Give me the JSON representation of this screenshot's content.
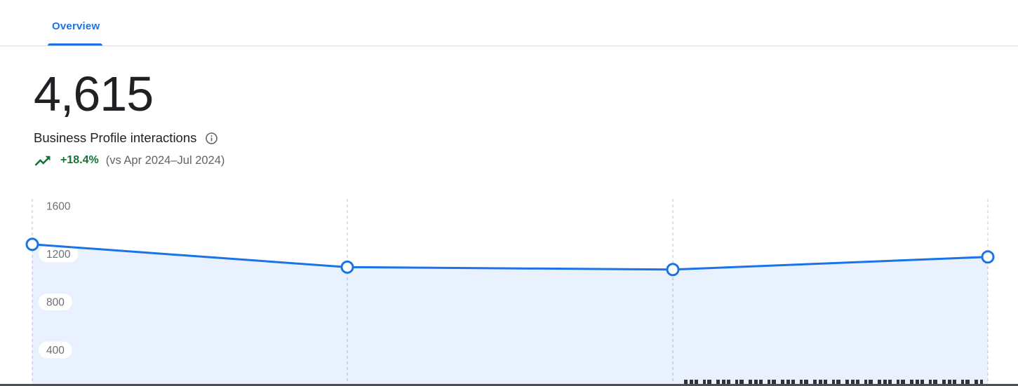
{
  "tabs": [
    {
      "label": "Overview",
      "active": true
    }
  ],
  "metric": {
    "value": "4,615",
    "label": "Business Profile interactions",
    "trend_percent": "+18.4%",
    "trend_direction": "up",
    "comparison": "(vs Apr 2024–Jul 2024)"
  },
  "icons": {
    "info": "circled-i-outline",
    "trend": "trending-up-zigzag-arrow"
  },
  "colors": {
    "accent_blue": "#1a73e8",
    "area_fill": "rgba(26,115,232,0.10)",
    "positive_green": "#137333",
    "text_primary": "#202124",
    "text_secondary": "#5f6368",
    "tick_label": "#6b7075",
    "gridline": "#c9ccd0",
    "divider": "#dadce0"
  },
  "chart_data": {
    "type": "area",
    "title": "Business Profile interactions over time",
    "series": [
      {
        "name": "Business Profile interactions",
        "values": [
          1280,
          1090,
          1070,
          1175
        ]
      }
    ],
    "points_count": 4,
    "y_ticks": [
      1600,
      1200,
      800,
      400
    ],
    "ylim": [
      0,
      1600
    ],
    "x_tick_labels_visible": false,
    "grid": "vertical-dashed",
    "markers": "circle-open",
    "legend": "none",
    "area_clipped_at_bottom": true
  }
}
